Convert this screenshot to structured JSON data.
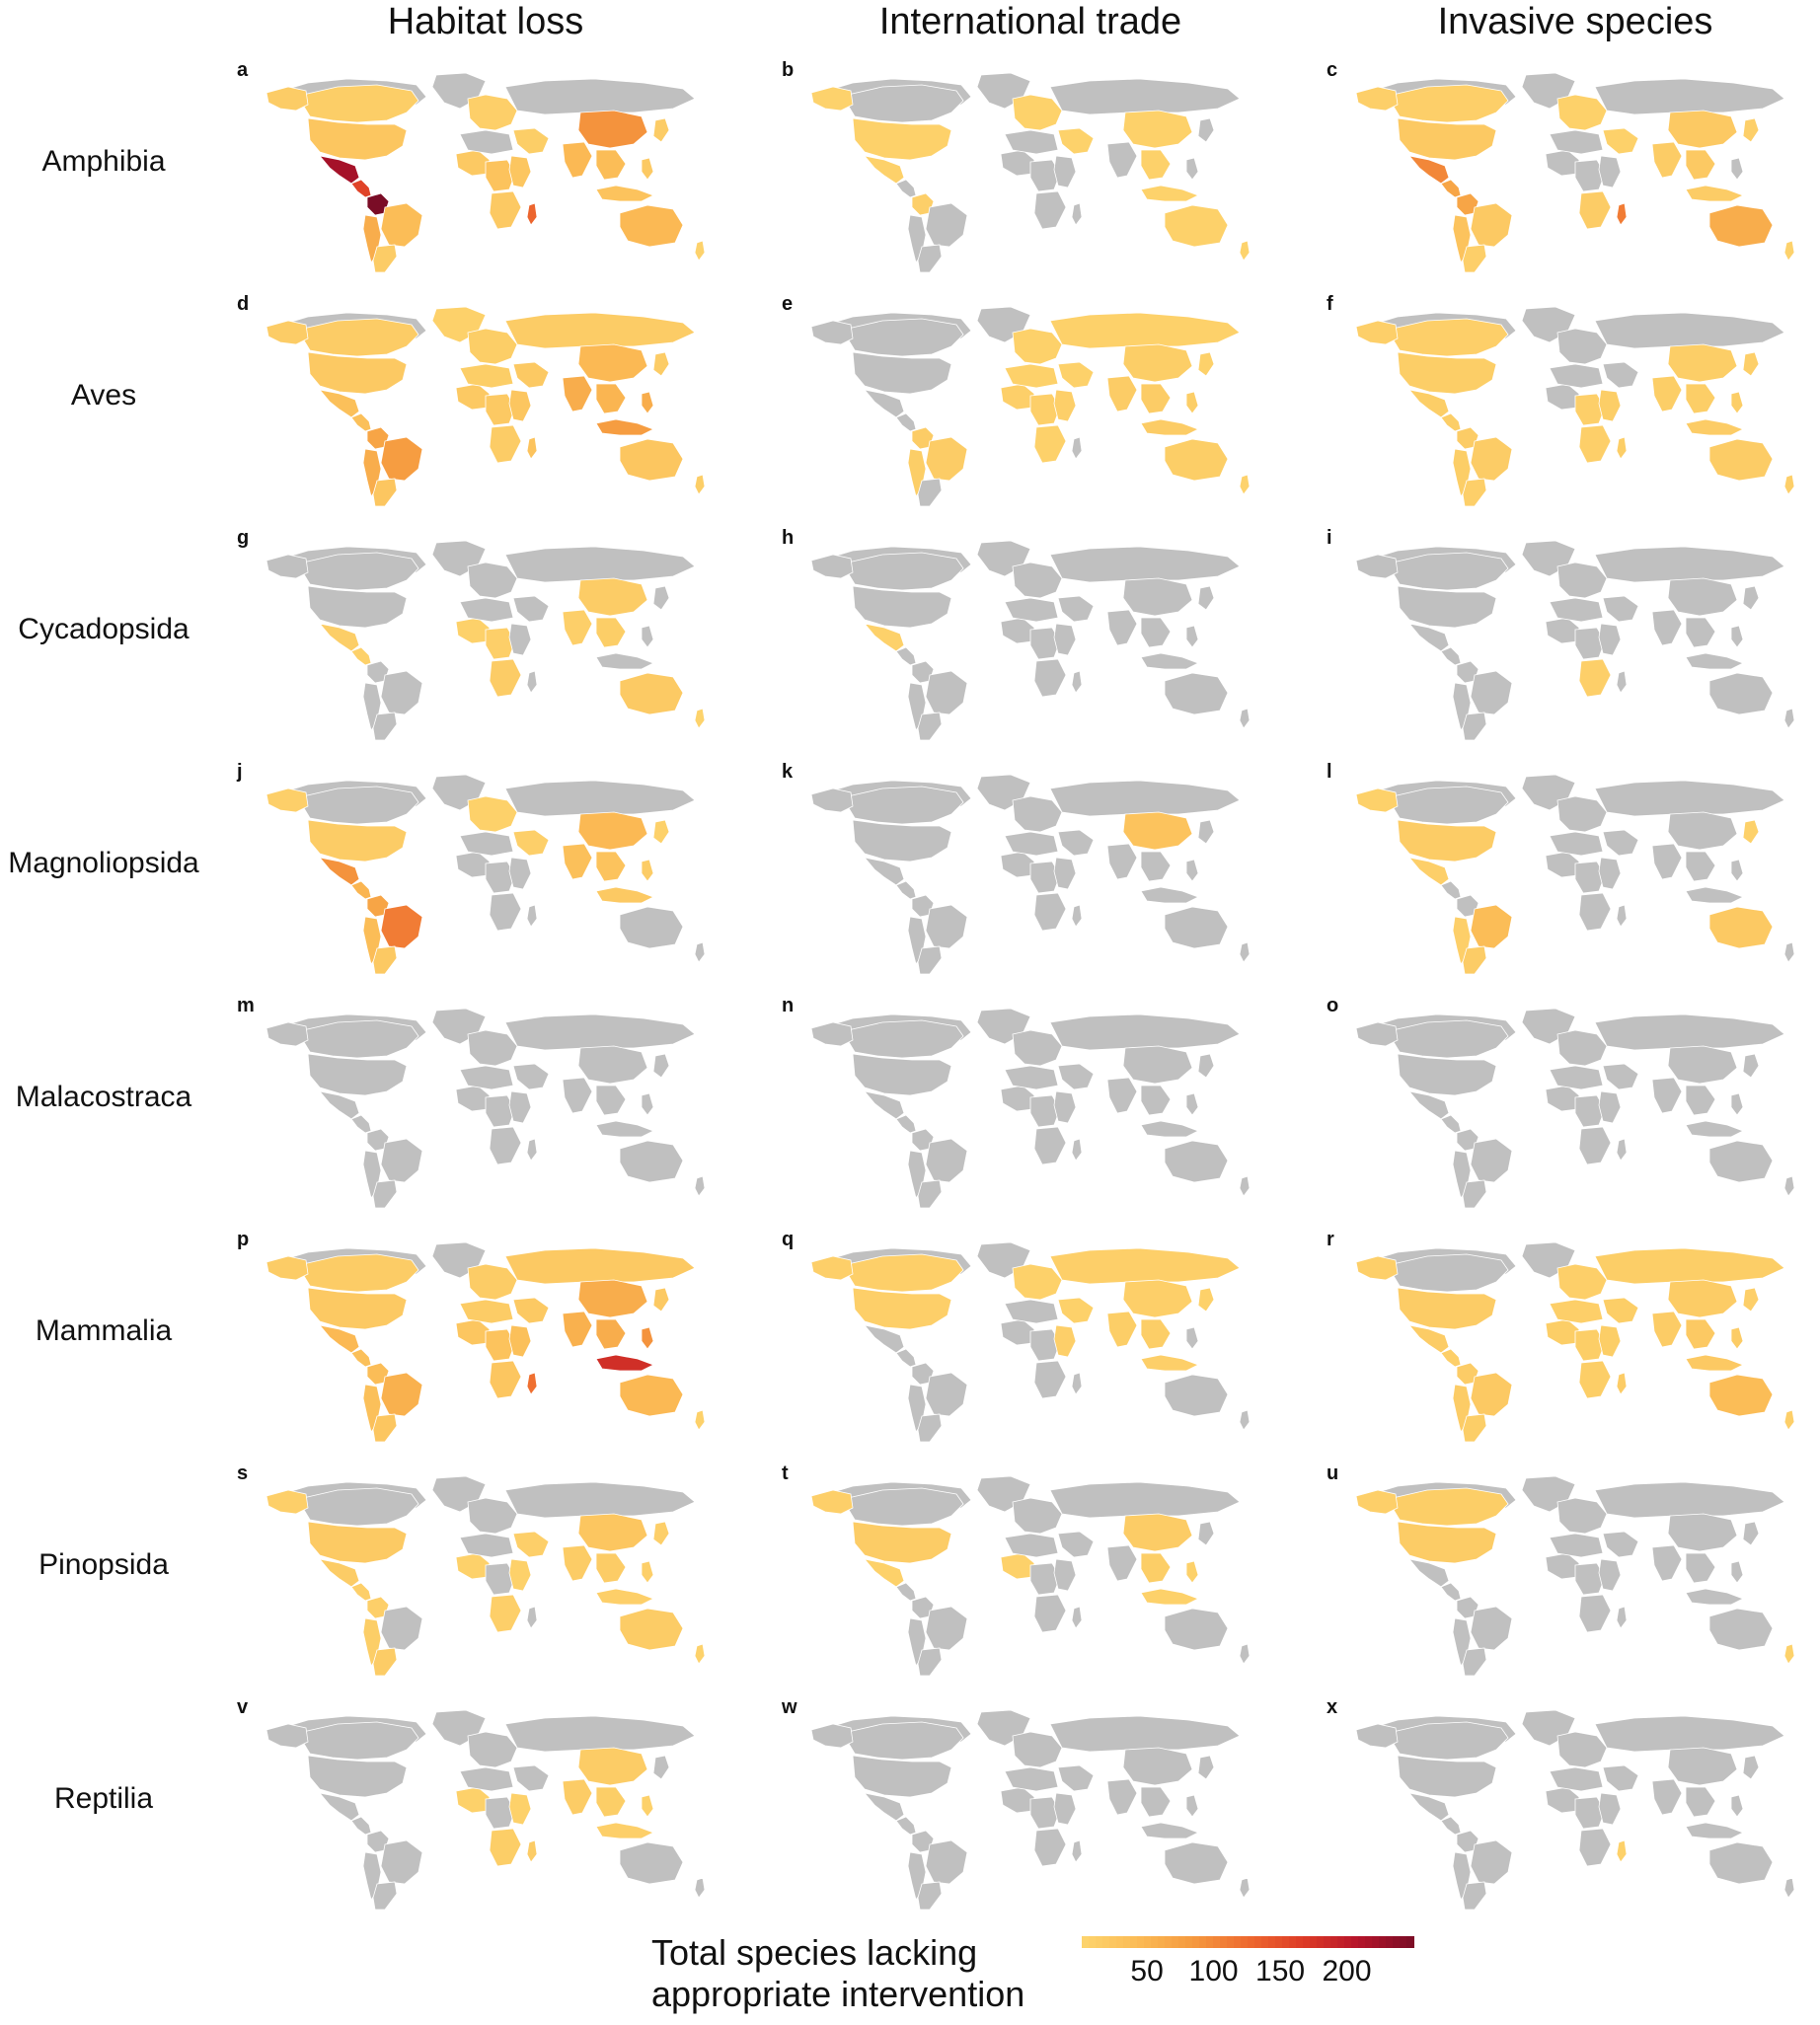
{
  "chart_data": {
    "type": "choropleth-grid",
    "columns": [
      "Habitat loss",
      "International trade",
      "Invasive species"
    ],
    "rows": [
      "Amphibia",
      "Aves",
      "Cycadopsida",
      "Magnoliopsida",
      "Malacostraca",
      "Mammalia",
      "Pinopsida",
      "Reptilia"
    ],
    "panel_letters": [
      "a",
      "b",
      "c",
      "d",
      "e",
      "f",
      "g",
      "h",
      "i",
      "j",
      "k",
      "l",
      "m",
      "n",
      "o",
      "p",
      "q",
      "r",
      "s",
      "t",
      "u",
      "v",
      "w",
      "x"
    ],
    "legend": {
      "title_lines": [
        "Total species lacking",
        "appropriate intervention"
      ],
      "ticks": [
        "50",
        "100",
        "150",
        "200"
      ],
      "range": [
        1,
        250
      ],
      "colors": [
        "#fdd56e",
        "#fbbb55",
        "#f59a3f",
        "#ee6a2f",
        "#dd3b26",
        "#b5142a",
        "#7a0c26"
      ]
    },
    "no_data_color": "#c0c0c0",
    "regions": [
      "NorthAmerica",
      "Canada",
      "Alaska",
      "Greenland",
      "USA",
      "Mexico",
      "CentralAmerica",
      "Colombia",
      "Andes",
      "Brazil",
      "SouthernCone",
      "Europe",
      "Russia",
      "MiddleEast",
      "WestAfrica",
      "NorthAfrica",
      "CentralAfrica",
      "EastAfrica",
      "SouthernAfrica",
      "Madagascar",
      "India",
      "China",
      "SEAsia",
      "Indonesia",
      "Philippines",
      "Japan",
      "Australia",
      "NewZealand"
    ],
    "panels": [
      {
        "letter": "a",
        "values": {
          "Canada": 12,
          "Alaska": 15,
          "USA": 25,
          "Mexico": 220,
          "CentralAmerica": 160,
          "Colombia": 250,
          "Andes": 60,
          "Brazil": 40,
          "SouthernCone": 15,
          "Europe": 10,
          "MiddleEast": 12,
          "WestAfrica": 20,
          "CentralAfrica": 30,
          "EastAfrica": 25,
          "SouthernAfrica": 20,
          "Madagascar": 130,
          "India": 45,
          "China": 90,
          "SEAsia": 40,
          "Indonesia": 30,
          "Philippines": 20,
          "Japan": 15,
          "Australia": 45,
          "NewZealand": 5
        }
      },
      {
        "letter": "b",
        "values": {
          "Alaska": 5,
          "USA": 8,
          "Mexico": 8,
          "Colombia": 10,
          "Europe": 6,
          "MiddleEast": 6,
          "China": 8,
          "SEAsia": 8,
          "Indonesia": 6,
          "Australia": 8,
          "NewZealand": 4
        }
      },
      {
        "letter": "c",
        "values": {
          "Canada": 10,
          "Alaska": 10,
          "USA": 20,
          "Mexico": 100,
          "CentralAmerica": 70,
          "Colombia": 70,
          "Andes": 30,
          "Brazil": 20,
          "SouthernCone": 10,
          "Europe": 8,
          "MiddleEast": 8,
          "SouthernAfrica": 15,
          "Madagascar": 110,
          "India": 15,
          "China": 20,
          "SEAsia": 20,
          "Indonesia": 15,
          "Japan": 10,
          "Australia": 60,
          "NewZealand": 5
        }
      },
      {
        "letter": "d",
        "values": {
          "Canada": 15,
          "Alaska": 15,
          "Greenland": 8,
          "USA": 20,
          "Mexico": 35,
          "CentralAmerica": 35,
          "Colombia": 70,
          "Andes": 60,
          "Brazil": 80,
          "SouthernCone": 25,
          "Europe": 12,
          "Russia": 15,
          "MiddleEast": 20,
          "WestAfrica": 20,
          "NorthAfrica": 12,
          "CentralAfrica": 20,
          "EastAfrica": 25,
          "SouthernAfrica": 15,
          "Madagascar": 30,
          "India": 60,
          "China": 45,
          "SEAsia": 50,
          "Indonesia": 80,
          "Philippines": 60,
          "Japan": 15,
          "Australia": 25,
          "NewZealand": 12
        }
      },
      {
        "letter": "e",
        "values": {
          "Colombia": 15,
          "Andes": 12,
          "Brazil": 15,
          "Europe": 8,
          "Russia": 8,
          "MiddleEast": 8,
          "WestAfrica": 10,
          "NorthAfrica": 8,
          "CentralAfrica": 10,
          "EastAfrica": 10,
          "SouthernAfrica": 8,
          "India": 15,
          "China": 12,
          "SEAsia": 15,
          "Indonesia": 15,
          "Philippines": 12,
          "Japan": 8,
          "Australia": 12,
          "NewZealand": 5
        }
      },
      {
        "letter": "f",
        "values": {
          "Canada": 10,
          "Alaska": 10,
          "USA": 12,
          "Mexico": 12,
          "CentralAmerica": 12,
          "Colombia": 15,
          "Brazil": 15,
          "Andes": 12,
          "SouthernCone": 10,
          "EastAfrica": 12,
          "CentralAfrica": 10,
          "SouthernAfrica": 10,
          "Madagascar": 12,
          "India": 12,
          "China": 12,
          "SEAsia": 12,
          "Indonesia": 15,
          "Philippines": 12,
          "Japan": 10,
          "Australia": 15,
          "NewZealand": 10
        }
      },
      {
        "letter": "g",
        "values": {
          "Mexico": 12,
          "CentralAmerica": 8,
          "WestAfrica": 8,
          "CentralAfrica": 10,
          "SouthernAfrica": 15,
          "India": 10,
          "China": 15,
          "SEAsia": 12,
          "Australia": 18,
          "NewZealand": 4
        }
      },
      {
        "letter": "h",
        "values": {
          "Mexico": 8
        }
      },
      {
        "letter": "i",
        "values": {
          "SouthernAfrica": 10
        }
      },
      {
        "letter": "j",
        "values": {
          "Alaska": 10,
          "USA": 15,
          "Mexico": 90,
          "CentralAmerica": 50,
          "Colombia": 70,
          "Andes": 40,
          "Brazil": 110,
          "SouthernCone": 20,
          "Europe": 8,
          "MiddleEast": 10,
          "India": 35,
          "China": 45,
          "SEAsia": 30,
          "Indonesia": 20,
          "Philippines": 15,
          "Japan": 8
        }
      },
      {
        "letter": "k",
        "values": {
          "China": 30
        }
      },
      {
        "letter": "l",
        "values": {
          "Alaska": 8,
          "USA": 15,
          "Mexico": 10,
          "Brazil": 40,
          "SouthernCone": 15,
          "Andes": 10,
          "Australia": 20,
          "Japan": 8
        }
      },
      {
        "letter": "m",
        "values": {}
      },
      {
        "letter": "n",
        "values": {}
      },
      {
        "letter": "o",
        "values": {}
      },
      {
        "letter": "p",
        "values": {
          "Canada": 15,
          "Alaska": 15,
          "USA": 20,
          "Mexico": 45,
          "CentralAmerica": 35,
          "Colombia": 40,
          "Andes": 35,
          "Brazil": 55,
          "SouthernCone": 25,
          "Europe": 15,
          "Russia": 20,
          "MiddleEast": 20,
          "WestAfrica": 25,
          "NorthAfrica": 15,
          "CentralAfrica": 30,
          "EastAfrica": 35,
          "SouthernAfrica": 25,
          "Madagascar": 120,
          "India": 55,
          "China": 60,
          "SEAsia": 60,
          "Indonesia": 180,
          "Philippines": 90,
          "Japan": 20,
          "Australia": 45,
          "NewZealand": 8
        }
      },
      {
        "letter": "q",
        "values": {
          "Canada": 10,
          "Alaska": 10,
          "USA": 10,
          "Europe": 8,
          "Russia": 10,
          "MiddleEast": 8,
          "EastAfrica": 10,
          "India": 12,
          "China": 10,
          "SEAsia": 12,
          "Indonesia": 10,
          "Japan": 8
        }
      },
      {
        "letter": "r",
        "values": {
          "Alaska": 10,
          "USA": 15,
          "Mexico": 15,
          "CentralAmerica": 10,
          "Colombia": 15,
          "Andes": 15,
          "Brazil": 20,
          "SouthernCone": 12,
          "Europe": 10,
          "Russia": 12,
          "MiddleEast": 12,
          "WestAfrica": 12,
          "NorthAfrica": 10,
          "CentralAfrica": 12,
          "EastAfrica": 12,
          "SouthernAfrica": 12,
          "Madagascar": 15,
          "India": 15,
          "China": 15,
          "SEAsia": 20,
          "Indonesia": 20,
          "Philippines": 15,
          "Japan": 10,
          "Australia": 40,
          "NewZealand": 10
        }
      },
      {
        "letter": "s",
        "values": {
          "Alaska": 10,
          "USA": 18,
          "Mexico": 15,
          "CentralAmerica": 10,
          "Colombia": 10,
          "Andes": 12,
          "SouthernCone": 15,
          "WestAfrica": 8,
          "EastAfrica": 8,
          "SouthernAfrica": 10,
          "MiddleEast": 10,
          "India": 15,
          "China": 25,
          "SEAsia": 15,
          "Indonesia": 10,
          "Philippines": 10,
          "Japan": 10,
          "Australia": 15,
          "NewZealand": 6
        }
      },
      {
        "letter": "t",
        "values": {
          "Alaska": 10,
          "USA": 15,
          "Mexico": 8,
          "WestAfrica": 8,
          "China": 15,
          "SEAsia": 12,
          "Indonesia": 8,
          "Philippines": 8
        }
      },
      {
        "letter": "u",
        "values": {
          "Canada": 12,
          "Alaska": 10,
          "USA": 15,
          "NewZealand": 6
        }
      },
      {
        "letter": "v",
        "values": {
          "WestAfrica": 8,
          "EastAfrica": 8,
          "SouthernAfrica": 12,
          "Madagascar": 15,
          "India": 15,
          "China": 15,
          "SEAsia": 12,
          "Indonesia": 10,
          "Philippines": 8
        }
      },
      {
        "letter": "w",
        "values": {}
      },
      {
        "letter": "x",
        "values": {
          "Madagascar": 8
        }
      }
    ]
  }
}
